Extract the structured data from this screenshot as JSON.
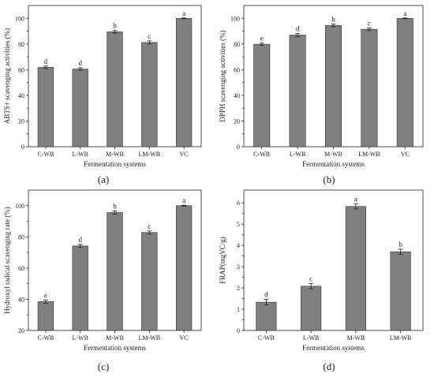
{
  "chart_data": [
    {
      "type": "bar",
      "panel_label": "(a)",
      "title": "",
      "xlabel": "Fermentation systems",
      "ylabel": "ABTS+ scavenging activities (%)",
      "ylim": [
        0,
        110
      ],
      "yticks": [
        0,
        20,
        40,
        60,
        80,
        100
      ],
      "categories": [
        "C-WB",
        "L-WB",
        "M-WB",
        "LM-WB",
        "VC"
      ],
      "values": [
        61.8,
        60.5,
        89.5,
        81.2,
        100
      ],
      "errors": [
        1.0,
        1.0,
        1.0,
        1.2,
        0.3
      ],
      "letters": [
        "d",
        "d",
        "b",
        "c",
        "a"
      ],
      "color": "#808080",
      "grid": false
    },
    {
      "type": "bar",
      "panel_label": "(b)",
      "title": "",
      "xlabel": "Fermentation systems",
      "ylabel": "DPPH scavenging activities (%)",
      "ylim": [
        0,
        110
      ],
      "yticks": [
        0,
        20,
        40,
        60,
        80,
        100
      ],
      "categories": [
        "C-WB",
        "L-WB",
        "M-WB",
        "LM-WB",
        "VC"
      ],
      "values": [
        79.8,
        87.0,
        94.5,
        91.5,
        100
      ],
      "errors": [
        0.9,
        1.2,
        1.0,
        1.0,
        0.3
      ],
      "letters": [
        "e",
        "d",
        "b",
        "c",
        "a"
      ],
      "color": "#808080",
      "grid": false
    },
    {
      "type": "bar",
      "panel_label": "(c)",
      "title": "",
      "xlabel": "Fermentation systems",
      "ylabel": "Hydroxyl radical scavenging rate (%)",
      "ylim": [
        20,
        110
      ],
      "yticks": [
        20,
        40,
        60,
        80,
        100
      ],
      "categories": [
        "C-WB",
        "L-WB",
        "M-WB",
        "LM-WB",
        "VC"
      ],
      "values": [
        38.5,
        74.2,
        95.6,
        82.8,
        100
      ],
      "errors": [
        1.0,
        1.0,
        1.0,
        1.0,
        0.3
      ],
      "letters": [
        "e",
        "d",
        "b",
        "c",
        "a"
      ],
      "color": "#808080",
      "grid": false
    },
    {
      "type": "bar",
      "panel_label": "(d)",
      "title": "",
      "xlabel": "Fermentation systems",
      "ylabel": "FRAP(mgVC/g)",
      "ylim": [
        0,
        6.6
      ],
      "yticks": [
        0,
        1,
        2,
        3,
        4,
        5,
        6
      ],
      "categories": [
        "C-WB",
        "L-WB",
        "M-WB",
        "LM-WB"
      ],
      "values": [
        1.33,
        2.08,
        5.83,
        3.7
      ],
      "errors": [
        0.13,
        0.12,
        0.12,
        0.12
      ],
      "letters": [
        "d",
        "c",
        "a",
        "b"
      ],
      "color": "#808080",
      "grid": false
    }
  ]
}
